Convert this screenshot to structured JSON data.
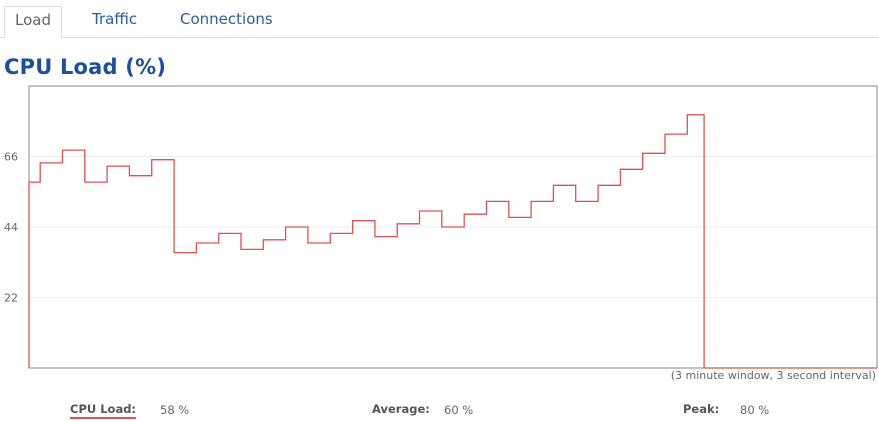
{
  "tabs": [
    {
      "label": "Load",
      "active": true
    },
    {
      "label": "Traffic",
      "active": false
    },
    {
      "label": "Connections",
      "active": false
    }
  ],
  "title": "CPU Load (%)",
  "window_note": "(3 minute window, 3 second interval)",
  "stats": {
    "cpu_load_label": "CPU Load:",
    "cpu_load_value": "58 %",
    "average_label": "Average:",
    "average_value": "60 %",
    "peak_label": "Peak:",
    "peak_value": "80 %"
  },
  "colors": {
    "line": "#e05050",
    "title": "#1f4e9b",
    "tab_link": "#2a5d9f"
  },
  "chart_data": {
    "type": "line",
    "title": "CPU Load (%)",
    "xlabel": "",
    "ylabel": "",
    "yticks": [
      22,
      44,
      66
    ],
    "ylim": [
      0,
      88
    ],
    "grid": true,
    "series": [
      {
        "values": [
          58,
          58,
          64,
          64,
          64,
          64,
          68,
          68,
          68,
          68,
          58,
          58,
          58,
          58,
          63,
          63,
          63,
          63,
          60,
          60,
          60,
          60,
          65,
          65,
          65,
          65,
          36,
          36,
          36,
          36,
          39,
          39,
          39,
          39,
          42,
          42,
          42,
          42,
          37,
          37,
          37,
          37,
          40,
          40,
          40,
          40,
          44,
          44,
          44,
          44,
          39,
          39,
          39,
          39,
          42,
          42,
          42,
          42,
          46,
          46,
          46,
          46,
          41,
          41,
          41,
          41,
          45,
          45,
          45,
          45,
          49,
          49,
          49,
          49,
          44,
          44,
          44,
          44,
          48,
          48,
          48,
          48,
          52,
          52,
          52,
          52,
          47,
          47,
          47,
          47,
          52,
          52,
          52,
          52,
          57,
          57,
          57,
          57,
          52,
          52,
          52,
          52,
          57,
          57,
          57,
          57,
          62,
          62,
          62,
          62,
          67,
          67,
          67,
          67,
          73,
          73,
          73,
          73,
          79,
          79,
          79,
          0,
          0,
          0,
          0,
          0,
          0,
          0,
          0,
          0,
          0,
          0,
          0,
          0,
          0,
          0,
          0,
          0,
          0,
          0,
          0,
          0,
          0,
          0,
          0,
          0,
          0,
          0,
          0,
          0,
          0,
          0,
          0
        ]
      }
    ]
  }
}
